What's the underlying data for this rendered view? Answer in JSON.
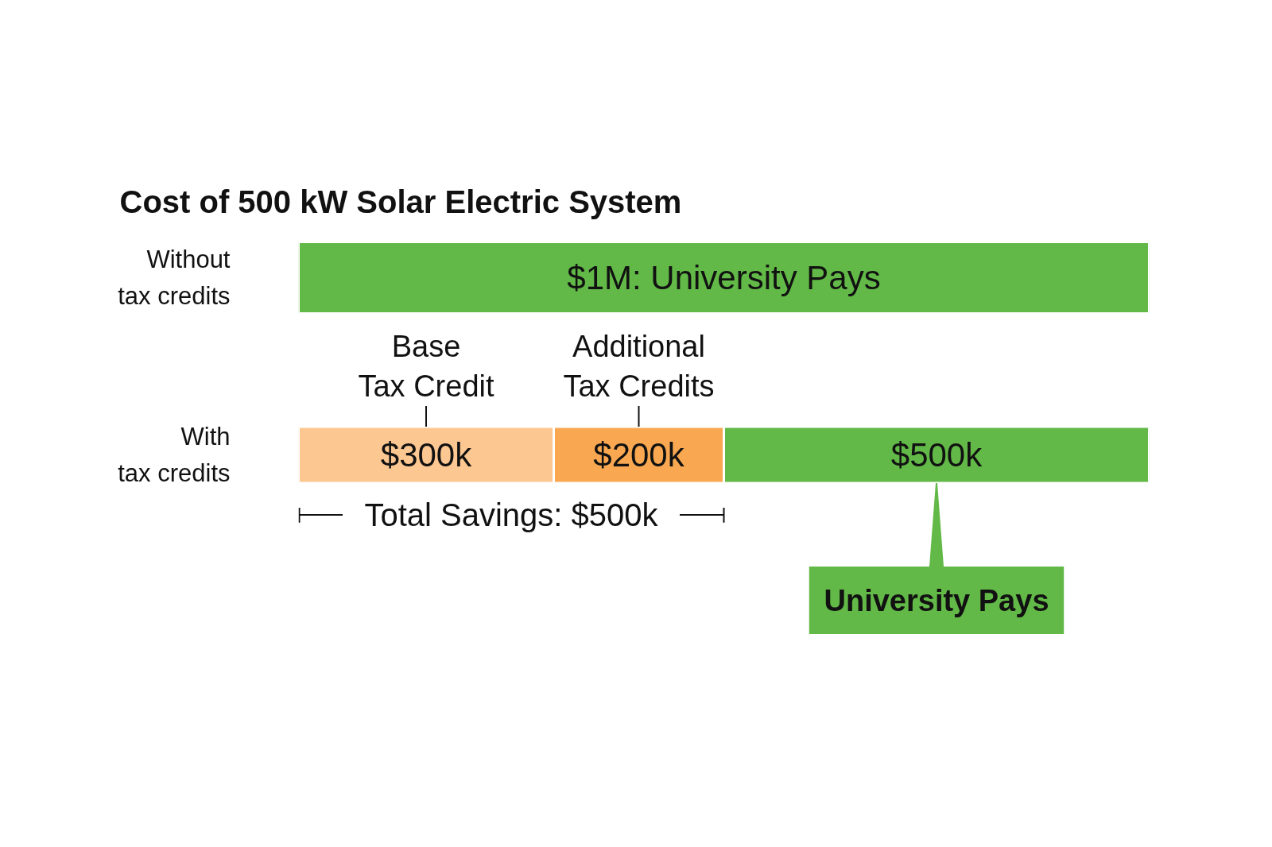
{
  "chart_data": {
    "type": "bar",
    "orientation": "horizontal",
    "stacked": true,
    "title": "Cost of 500 kW Solar Electric System",
    "categories": [
      "Without\ntax credits",
      "With\ntax credits"
    ],
    "series": [
      {
        "color": "#fdc791",
        "values": [
          null,
          300000
        ],
        "value_labels": [
          null,
          "$300k"
        ]
      },
      {
        "color": "#f9a851",
        "values": [
          null,
          200000
        ],
        "value_labels": [
          null,
          "$200k"
        ]
      },
      {
        "color": "#62b947",
        "values": [
          1000000,
          500000
        ],
        "value_labels": [
          "$1M: University Pays",
          "$500k"
        ]
      }
    ],
    "xlim": [
      0,
      1000000
    ],
    "tick_labels": "y",
    "grid": false,
    "annotations": [
      "Base\nTax Credit",
      "Additional\nTax Credits",
      "Total Savings: $500k",
      "University Pays"
    ]
  }
}
